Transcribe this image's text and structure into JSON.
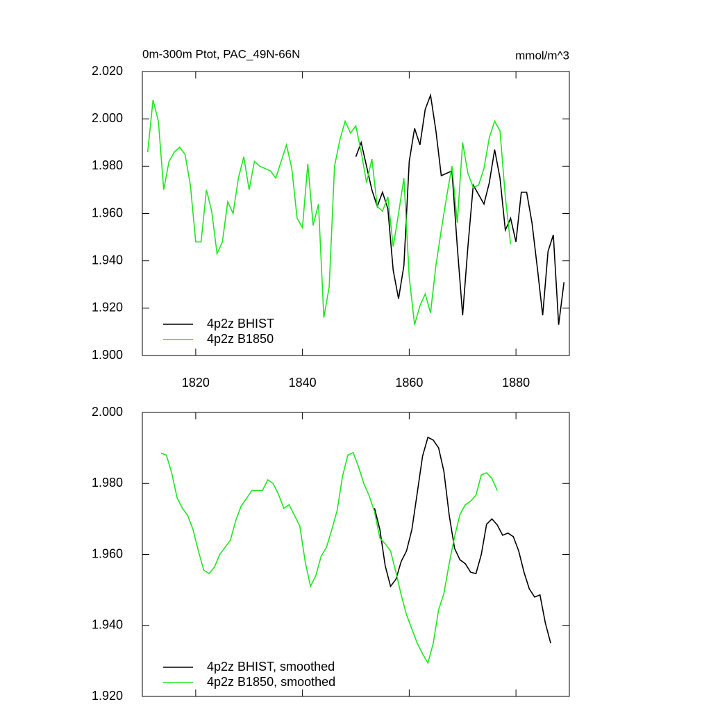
{
  "chart_data": [
    {
      "type": "line",
      "title": "0m-300m Ptot, PAC_49N-66N",
      "units": "mmol/m^3",
      "xlim": [
        1810,
        1890
      ],
      "xticks": [
        1820,
        1840,
        1860,
        1880
      ],
      "ylim": [
        1.9,
        2.02
      ],
      "yticks": [
        {
          "value": 1.9,
          "label": "1.900"
        },
        {
          "value": 1.92,
          "label": "1.920"
        },
        {
          "value": 1.94,
          "label": "1.940"
        },
        {
          "value": 1.96,
          "label": "1.960"
        },
        {
          "value": 1.98,
          "label": "1.980"
        },
        {
          "value": 2.0,
          "label": "2.000"
        },
        {
          "value": 2.02,
          "label": "2.020"
        }
      ],
      "series": [
        {
          "name": "4p2z BHIST",
          "color": "#000000",
          "x": [
            1850,
            1851,
            1852,
            1853,
            1854,
            1855,
            1856,
            1857,
            1858,
            1859,
            1860,
            1861,
            1862,
            1863,
            1864,
            1865,
            1866,
            1867,
            1868,
            1869,
            1870,
            1871,
            1872,
            1873,
            1874,
            1875,
            1876,
            1877,
            1878,
            1879,
            1880,
            1881,
            1882,
            1883,
            1884,
            1885,
            1886,
            1887,
            1888,
            1889
          ],
          "values": [
            1.984,
            1.99,
            1.98,
            1.97,
            1.963,
            1.969,
            1.962,
            1.936,
            1.924,
            1.938,
            1.982,
            1.996,
            1.989,
            2.004,
            2.01,
            1.995,
            1.976,
            1.977,
            1.978,
            1.946,
            1.917,
            1.946,
            1.972,
            1.968,
            1.964,
            1.973,
            1.987,
            1.975,
            1.953,
            1.958,
            1.948,
            1.969,
            1.969,
            1.956,
            1.937,
            1.917,
            1.944,
            1.951,
            1.913,
            1.931
          ]
        },
        {
          "name": "4p2z B1850",
          "color": "#1ee61e",
          "x": [
            1811,
            1812,
            1813,
            1814,
            1815,
            1816,
            1817,
            1818,
            1819,
            1820,
            1821,
            1822,
            1823,
            1824,
            1825,
            1826,
            1827,
            1828,
            1829,
            1830,
            1831,
            1832,
            1833,
            1834,
            1835,
            1836,
            1837,
            1838,
            1839,
            1840,
            1841,
            1842,
            1843,
            1844,
            1845,
            1846,
            1847,
            1848,
            1849,
            1850,
            1851,
            1852,
            1853,
            1854,
            1855,
            1856,
            1857,
            1858,
            1859,
            1860,
            1861,
            1862,
            1863,
            1864,
            1865,
            1866,
            1867,
            1868,
            1869,
            1870,
            1871,
            1872,
            1873,
            1874,
            1875,
            1876,
            1877,
            1878,
            1879
          ],
          "values": [
            1.986,
            2.008,
            1.999,
            1.97,
            1.982,
            1.986,
            1.988,
            1.985,
            1.972,
            1.948,
            1.948,
            1.97,
            1.961,
            1.943,
            1.948,
            1.965,
            1.96,
            1.975,
            1.984,
            1.97,
            1.982,
            1.98,
            1.979,
            1.978,
            1.975,
            1.982,
            1.989,
            1.979,
            1.958,
            1.954,
            1.981,
            1.955,
            1.964,
            1.916,
            1.929,
            1.98,
            1.991,
            1.999,
            1.994,
            1.997,
            1.986,
            1.973,
            1.983,
            1.963,
            1.961,
            1.967,
            1.946,
            1.96,
            1.975,
            1.933,
            1.913,
            1.921,
            1.926,
            1.918,
            1.938,
            1.953,
            1.967,
            1.98,
            1.956,
            1.99,
            1.977,
            1.971,
            1.972,
            1.979,
            1.992,
            1.999,
            1.995,
            1.967,
            1.947
          ]
        }
      ]
    },
    {
      "type": "line",
      "xlim": [
        1810,
        1890
      ],
      "ylim": [
        1.92,
        2.0
      ],
      "yticks": [
        {
          "value": 1.92,
          "label": "1.920"
        },
        {
          "value": 1.94,
          "label": "1.940"
        },
        {
          "value": 1.96,
          "label": "1.960"
        },
        {
          "value": 1.98,
          "label": "1.980"
        },
        {
          "value": 2.0,
          "label": "2.000"
        }
      ],
      "series": [
        {
          "name": "4p2z BHIST, smoothed",
          "color": "#000000",
          "x": [
            1853.5,
            1854.5,
            1855.5,
            1856.5,
            1857.5,
            1858.5,
            1859.5,
            1860.5,
            1861.5,
            1862.5,
            1863.5,
            1864.5,
            1865.5,
            1866.5,
            1867.5,
            1868.5,
            1869.5,
            1870.5,
            1871.5,
            1872.5,
            1873.5,
            1874.5,
            1875.5,
            1876.5,
            1877.5,
            1878.5,
            1879.5,
            1880.5,
            1881.5,
            1882.5,
            1883.5,
            1884.5,
            1885.5,
            1886.5
          ],
          "values": [
            1.973,
            1.967,
            1.9568,
            1.951,
            1.953,
            1.958,
            1.961,
            1.967,
            1.9773,
            1.9877,
            1.993,
            1.9922,
            1.99,
            1.9834,
            1.971,
            1.9617,
            1.9585,
            1.9574,
            1.955,
            1.9546,
            1.96,
            1.9685,
            1.97,
            1.9683,
            1.9654,
            1.966,
            1.965,
            1.961,
            1.955,
            1.9503,
            1.948,
            1.9486,
            1.9407,
            1.935
          ]
        },
        {
          "name": "4p2z B1850, smoothed",
          "color": "#1ee61e",
          "x": [
            1813.5,
            1814.5,
            1815.5,
            1816.5,
            1817.5,
            1818.5,
            1819.5,
            1820.5,
            1821.5,
            1822.5,
            1823.5,
            1824.5,
            1825.5,
            1826.5,
            1827.5,
            1828.5,
            1829.5,
            1830.5,
            1831.5,
            1832.5,
            1833.5,
            1834.5,
            1835.5,
            1836.5,
            1837.5,
            1838.5,
            1839.5,
            1840.5,
            1841.5,
            1842.5,
            1843.5,
            1844.5,
            1845.5,
            1846.5,
            1847.5,
            1848.5,
            1849.5,
            1850.5,
            1851.5,
            1852.5,
            1853.5,
            1854.5,
            1855.5,
            1856.5,
            1857.5,
            1858.5,
            1859.5,
            1860.5,
            1861.5,
            1862.5,
            1863.5,
            1864.5,
            1865.5,
            1866.5,
            1867.5,
            1868.5,
            1869.5,
            1870.5,
            1871.5,
            1872.5,
            1873.5,
            1874.5,
            1875.5,
            1876.5
          ],
          "values": [
            1.9885,
            1.988,
            1.983,
            1.976,
            1.973,
            1.971,
            1.967,
            1.961,
            1.9556,
            1.9546,
            1.9564,
            1.96,
            1.962,
            1.964,
            1.9695,
            1.9736,
            1.9757,
            1.978,
            1.978,
            1.978,
            1.981,
            1.98,
            1.977,
            1.973,
            1.974,
            1.971,
            1.968,
            1.958,
            1.951,
            1.954,
            1.9595,
            1.962,
            1.967,
            1.9724,
            1.982,
            1.988,
            1.9887,
            1.9847,
            1.98,
            1.9765,
            1.972,
            1.9646,
            1.963,
            1.961,
            1.955,
            1.9486,
            1.943,
            1.939,
            1.935,
            1.932,
            1.9294,
            1.935,
            1.9444,
            1.949,
            1.9575,
            1.965,
            1.9712,
            1.974,
            1.975,
            1.9767,
            1.9824,
            1.983,
            1.9814,
            1.978
          ]
        }
      ]
    }
  ]
}
